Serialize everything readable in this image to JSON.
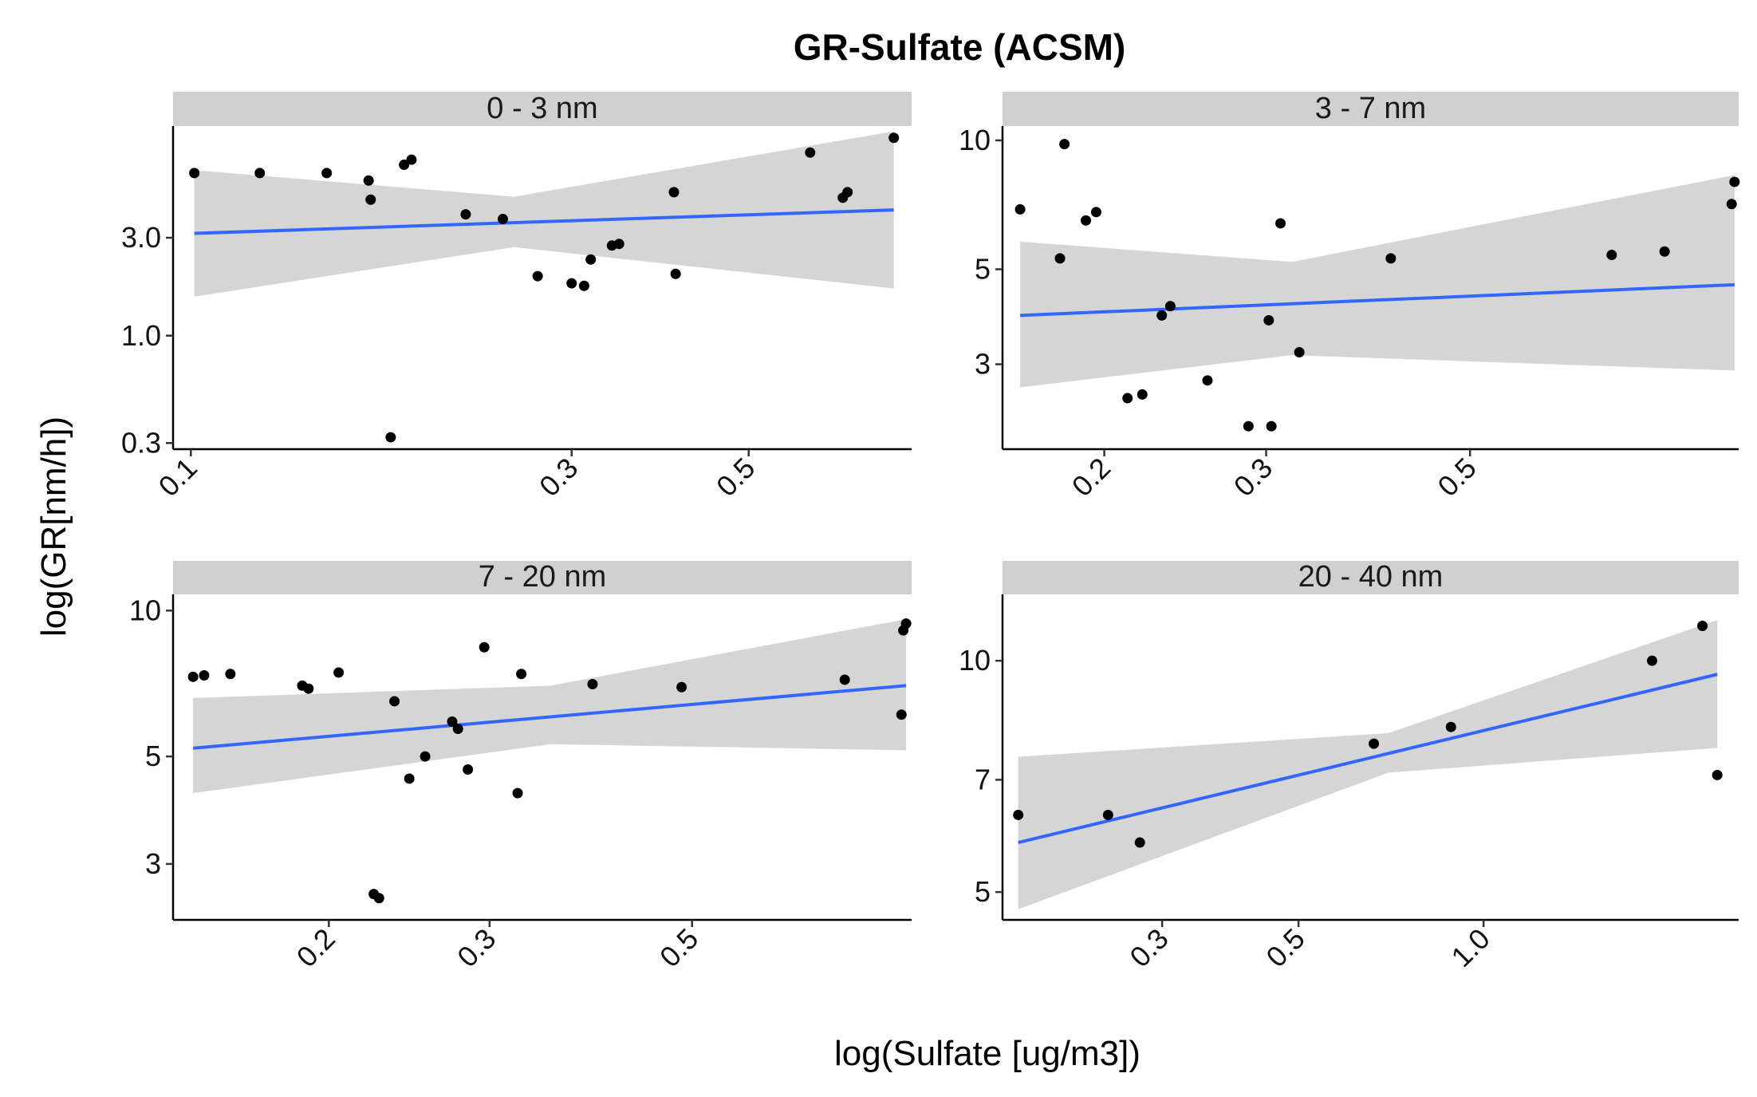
{
  "chart_data": {
    "type": "scatter",
    "title": "GR-Sulfate (ACSM)",
    "xlabel": "log(Sulfate [ug/m3])",
    "ylabel": "log(GR[nm/h])",
    "x_scale": "log",
    "y_scale": "log",
    "grid": false,
    "colors": {
      "points": "#000000",
      "fit_line": "#3366ff",
      "ribbon": "#d3d3d3",
      "strip": "#d0d0d0"
    },
    "panels": [
      {
        "strip": "0 - 3 nm",
        "xlim": [
          0.095,
          0.8
        ],
        "ylim": [
          0.28,
          10.5
        ],
        "x_ticks": [
          0.1,
          0.3,
          0.5
        ],
        "x_tick_labels": [
          "0.1",
          "0.3",
          "0.5"
        ],
        "y_ticks": [
          0.3,
          1.0,
          3.0
        ],
        "y_tick_labels": [
          "0.3",
          "1.0",
          "3.0"
        ],
        "points": [
          [
            0.101,
            6.2
          ],
          [
            0.122,
            6.2
          ],
          [
            0.148,
            6.2
          ],
          [
            0.167,
            5.7
          ],
          [
            0.168,
            4.6
          ],
          [
            0.178,
            0.32
          ],
          [
            0.185,
            6.8
          ],
          [
            0.189,
            7.2
          ],
          [
            0.221,
            3.9
          ],
          [
            0.246,
            3.7
          ],
          [
            0.272,
            1.95
          ],
          [
            0.3,
            1.8
          ],
          [
            0.311,
            1.75
          ],
          [
            0.317,
            2.35
          ],
          [
            0.337,
            2.75
          ],
          [
            0.344,
            2.8
          ],
          [
            0.403,
            5.0
          ],
          [
            0.405,
            2.0
          ],
          [
            0.597,
            7.8
          ],
          [
            0.656,
            4.7
          ],
          [
            0.665,
            5.0
          ],
          [
            0.76,
            9.2
          ]
        ],
        "fit": {
          "x": [
            0.101,
            0.76
          ],
          "y": [
            3.15,
            4.1
          ]
        },
        "band": {
          "x": [
            0.101,
            0.254,
            0.76
          ],
          "lower": [
            1.55,
            2.7,
            1.7
          ],
          "upper": [
            6.4,
            4.75,
            9.9
          ]
        }
      },
      {
        "strip": "3 - 7 nm",
        "xlim": [
          0.155,
          0.98
        ],
        "ylim": [
          1.9,
          10.8
        ],
        "x_ticks": [
          0.2,
          0.3,
          0.5
        ],
        "x_tick_labels": [
          "0.2",
          "0.3",
          "0.5"
        ],
        "y_ticks": [
          3,
          5,
          10
        ],
        "y_tick_labels": [
          "3",
          "5",
          "10"
        ],
        "points": [
          [
            0.162,
            6.9
          ],
          [
            0.179,
            5.3
          ],
          [
            0.181,
            9.8
          ],
          [
            0.191,
            6.5
          ],
          [
            0.196,
            6.8
          ],
          [
            0.212,
            2.5
          ],
          [
            0.22,
            2.55
          ],
          [
            0.231,
            3.9
          ],
          [
            0.236,
            4.1
          ],
          [
            0.259,
            2.75
          ],
          [
            0.287,
            2.15
          ],
          [
            0.302,
            3.8
          ],
          [
            0.304,
            2.15
          ],
          [
            0.311,
            6.4
          ],
          [
            0.326,
            3.2
          ],
          [
            0.41,
            5.3
          ],
          [
            0.713,
            5.4
          ],
          [
            0.814,
            5.5
          ],
          [
            0.963,
            7.1
          ],
          [
            0.97,
            8.0
          ]
        ],
        "fit": {
          "x": [
            0.162,
            0.97
          ],
          "y": [
            3.9,
            4.6
          ]
        },
        "band": {
          "x": [
            0.162,
            0.32,
            0.97
          ],
          "lower": [
            2.65,
            3.15,
            2.9
          ],
          "upper": [
            5.8,
            5.2,
            8.3
          ]
        }
      },
      {
        "strip": "7 - 20 nm",
        "xlim": [
          0.135,
          0.87
        ],
        "ylim": [
          2.3,
          10.8
        ],
        "x_ticks": [
          0.2,
          0.3,
          0.5
        ],
        "x_tick_labels": [
          "0.2",
          "0.3",
          "0.5"
        ],
        "y_ticks": [
          3,
          5,
          10
        ],
        "y_tick_labels": [
          "3",
          "5",
          "10"
        ],
        "points": [
          [
            0.142,
            7.3
          ],
          [
            0.146,
            7.35
          ],
          [
            0.156,
            7.4
          ],
          [
            0.187,
            7.0
          ],
          [
            0.19,
            6.9
          ],
          [
            0.205,
            7.45
          ],
          [
            0.224,
            2.6
          ],
          [
            0.227,
            2.55
          ],
          [
            0.236,
            6.5
          ],
          [
            0.245,
            4.5
          ],
          [
            0.255,
            5.0
          ],
          [
            0.273,
            5.9
          ],
          [
            0.277,
            5.7
          ],
          [
            0.284,
            4.7
          ],
          [
            0.296,
            8.4
          ],
          [
            0.322,
            4.2
          ],
          [
            0.325,
            7.4
          ],
          [
            0.389,
            7.05
          ],
          [
            0.487,
            6.95
          ],
          [
            0.735,
            7.2
          ],
          [
            0.848,
            6.1
          ],
          [
            0.852,
            9.1
          ],
          [
            0.858,
            9.4
          ]
        ],
        "fit": {
          "x": [
            0.142,
            0.858
          ],
          "y": [
            5.2,
            7.0
          ]
        },
        "band": {
          "x": [
            0.142,
            0.35,
            0.858
          ],
          "lower": [
            4.2,
            5.3,
            5.15
          ],
          "upper": [
            6.6,
            7.0,
            9.6
          ]
        }
      },
      {
        "strip": "20 - 40 nm",
        "xlim": [
          0.165,
          2.6
        ],
        "ylim": [
          4.6,
          12.2
        ],
        "x_ticks": [
          0.3,
          0.5,
          1.0
        ],
        "x_tick_labels": [
          "0.3",
          "0.5",
          "1.0"
        ],
        "y_ticks": [
          5,
          7,
          10
        ],
        "y_tick_labels": [
          "5",
          "7",
          "10"
        ],
        "points": [
          [
            0.175,
            6.3
          ],
          [
            0.245,
            6.3
          ],
          [
            0.276,
            5.8
          ],
          [
            0.663,
            7.8
          ],
          [
            0.885,
            8.2
          ],
          [
            1.88,
            10.0
          ],
          [
            2.27,
            11.1
          ],
          [
            2.4,
            7.1
          ]
        ],
        "fit": {
          "x": [
            0.175,
            2.4
          ],
          "y": [
            5.8,
            9.6
          ]
        },
        "band": {
          "x": [
            0.175,
            0.7,
            2.4
          ],
          "lower": [
            4.75,
            7.15,
            7.7
          ],
          "upper": [
            7.5,
            8.05,
            11.3
          ]
        }
      }
    ]
  }
}
